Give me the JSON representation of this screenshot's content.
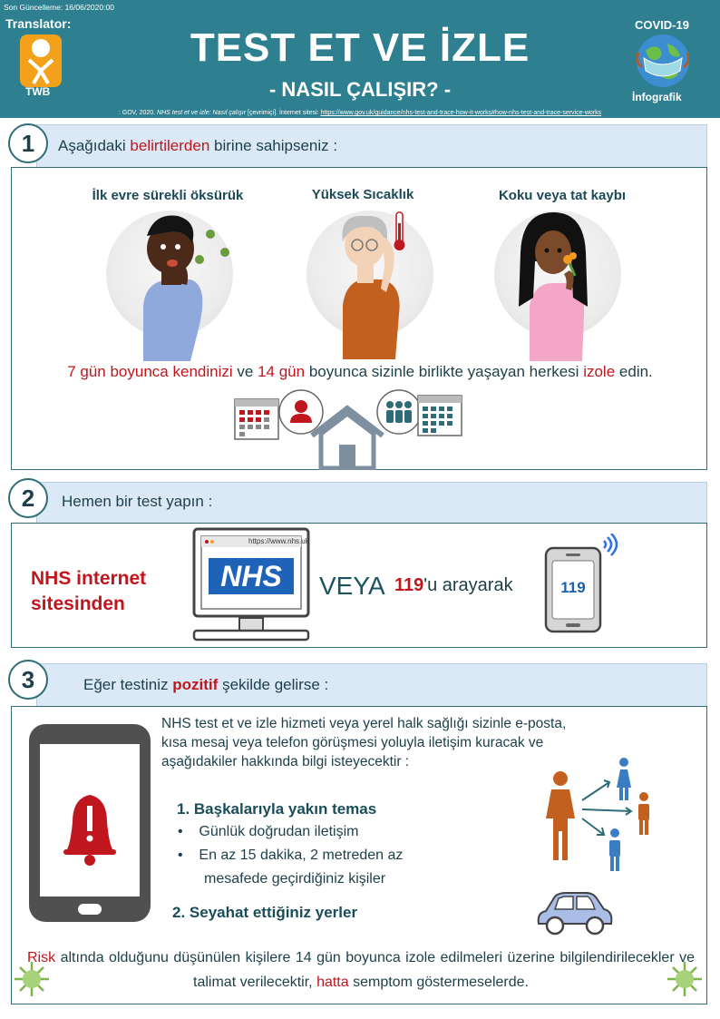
{
  "header": {
    "last_update": "Son Güncelleme: 16/06/2020:00",
    "translator_label": "Translator:",
    "twb_label": "TWB",
    "title": "TEST ET VE İZLE",
    "subtitle": "- NASIL ÇALIŞIR? -",
    "covid_label": "COVID-19",
    "infografik_label": "İnfografik",
    "source_prefix": ": GOV, 2020.",
    "source_title": "NHS test et ve izle: Nasıl çalışır",
    "source_mid": "[çevrimiçi]. İnternet sitesi:",
    "source_url": "https://www.gov.uk/guidance/nhs-test-and-trace-how-it-works#how-nhs-test-and-trace-service-works",
    "colors": {
      "header_bg": "#2e7f8f",
      "accent_red": "#c0161d",
      "band_bg": "#dbe9f6"
    }
  },
  "section1": {
    "number": "1",
    "band_prefix": "Aşağıdaki",
    "band_highlight": "belirtilerden",
    "band_suffix": "birine sahipseniz :",
    "symptoms": [
      {
        "title": "İlk evre sürekli öksürük",
        "icon": "coughing-person-icon"
      },
      {
        "title": "Yüksek Sıcaklık",
        "icon": "fever-person-icon"
      },
      {
        "title": "Koku veya tat kaybı",
        "icon": "smell-loss-person-icon"
      }
    ],
    "isolate": {
      "p1": "7 gün boyunca",
      "p2": "kendinizi",
      "p3": "ve",
      "p4": "14 gün",
      "p5": "boyunca sizinle birlikte yaşayan herkesi",
      "p6": "izole",
      "p7": "edin."
    }
  },
  "section2": {
    "number": "2",
    "band_text": "Hemen bir test yapın :",
    "nhs_site_line1": "NHS internet",
    "nhs_site_line2": "sitesinden",
    "browser_url": "https://www.nhs.uk",
    "nhs_logo": "NHS",
    "veya": "VEYA",
    "phone_number": "119",
    "call_suffix": "'u arayarak",
    "phone_screen": "119"
  },
  "section3": {
    "number": "3",
    "band_prefix": "Eğer testiniz",
    "band_highlight": "pozitif",
    "band_suffix": "şekilde gelirse :",
    "info_text": "NHS test et ve izle hizmeti veya yerel halk sağlığı sizinle e-posta, kısa mesaj veya telefon görüşmesi yoluyla iletişim kuracak ve aşağıdakiler hakkında bilgi isteyecektir :",
    "item1_title": "1. Başkalarıyla yakın temas",
    "bullets": [
      "Günlük doğrudan iletişim",
      "En az 15 dakika, 2 metreden az",
      "mesafede geçirdiğiniz kişiler"
    ],
    "item2_title": "2. Seyahat ettiğiniz yerler",
    "risk": {
      "w1": "Risk",
      "t1": "altında olduğunu düşünülen kişilere 14 gün boyunca izole edilmeleri üzerine bilgilendirilecekler ve talimat verilecektir,",
      "w2": "hatta",
      "t2": "semptom göstermeselerde."
    }
  }
}
